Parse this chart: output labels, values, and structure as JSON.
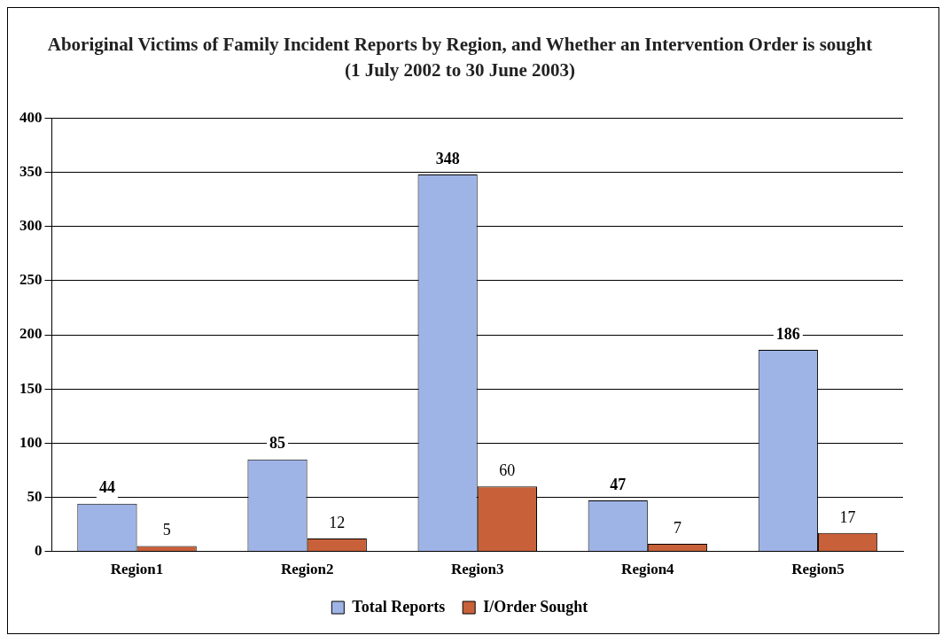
{
  "chart_data": {
    "type": "bar",
    "title": "Aboriginal Victims of Family Incident Reports by Region, and Whether an Intervention Order is sought",
    "subtitle": "(1 July 2002 to 30 June 2003)",
    "categories": [
      "Region1",
      "Region2",
      "Region3",
      "Region4",
      "Region5"
    ],
    "series": [
      {
        "name": "Total Reports",
        "color": "#9fb4e6",
        "values": [
          44,
          85,
          348,
          47,
          186
        ]
      },
      {
        "name": "I/Order Sought",
        "color": "#c8603a",
        "values": [
          5,
          12,
          60,
          7,
          17
        ]
      }
    ],
    "ylim": [
      0,
      400
    ],
    "yticks": [
      0,
      50,
      100,
      150,
      200,
      250,
      300,
      350,
      400
    ],
    "grid": "y",
    "legend": "bottom",
    "data_labels": true
  }
}
